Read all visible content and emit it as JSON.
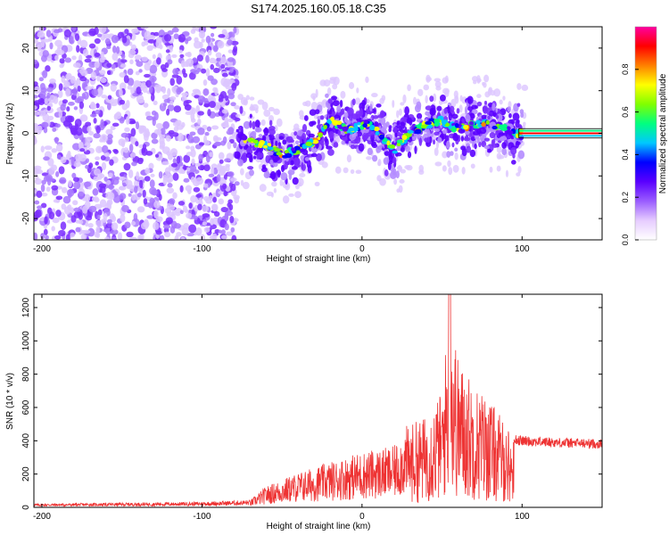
{
  "title": "S174.2025.160.05.18.C35",
  "chart_data": [
    {
      "type": "heatmap",
      "title": "S174.2025.160.05.18.C35",
      "xlabel": "Height of straight line (km)",
      "ylabel": "Frequency (Hz)",
      "xlim": [
        -205,
        150
      ],
      "ylim": [
        -25,
        25
      ],
      "xticks": [
        -200,
        -100,
        0,
        100
      ],
      "yticks": [
        -20,
        -10,
        0,
        10,
        20
      ],
      "colorbar": {
        "label": "Normalized spectral amplitude",
        "range": [
          0,
          1
        ],
        "ticks": [
          "0.0",
          "0.2",
          "0.4",
          "0.6",
          "0.8"
        ],
        "colors": [
          "#ffffff",
          "#e6ccff",
          "#9a5cff",
          "#5a00ff",
          "#0000ff",
          "#00c8ff",
          "#00ff80",
          "#80ff00",
          "#ffff00",
          "#ff8000",
          "#ff0000",
          "#ff00a0"
        ]
      },
      "ridge": {
        "x": [
          -75,
          -70,
          -60,
          -50,
          -40,
          -30,
          -20,
          -15,
          -10,
          -5,
          0,
          5,
          10,
          15,
          20,
          25,
          30,
          40,
          50,
          60,
          70,
          80,
          90,
          95,
          100,
          150
        ],
        "y": [
          -1,
          -2,
          -3,
          -5,
          -4,
          -2,
          3,
          2,
          1,
          1,
          2,
          2,
          0,
          -2,
          -4,
          -2,
          0,
          2,
          3,
          1,
          2,
          2,
          1,
          0,
          0,
          0
        ]
      },
      "noise_region_x": [
        -205,
        -78
      ]
    },
    {
      "type": "line",
      "xlabel": "Height of straight line (km)",
      "ylabel": "SNR (10 * v/v)",
      "xlim": [
        -205,
        150
      ],
      "ylim": [
        0,
        1280
      ],
      "xticks": [
        -200,
        -100,
        0,
        100
      ],
      "yticks": [
        0,
        200,
        400,
        600,
        800,
        1000,
        1200
      ],
      "line_color": "#ee3333",
      "envelope": {
        "x": [
          -205,
          -150,
          -100,
          -70,
          -60,
          -40,
          -20,
          0,
          20,
          30,
          40,
          50,
          55,
          60,
          70,
          80,
          90,
          95,
          100,
          120,
          150
        ],
        "y": [
          20,
          25,
          30,
          40,
          120,
          200,
          260,
          320,
          350,
          500,
          550,
          700,
          1280,
          900,
          750,
          650,
          500,
          420,
          410,
          400,
          390
        ]
      }
    }
  ]
}
